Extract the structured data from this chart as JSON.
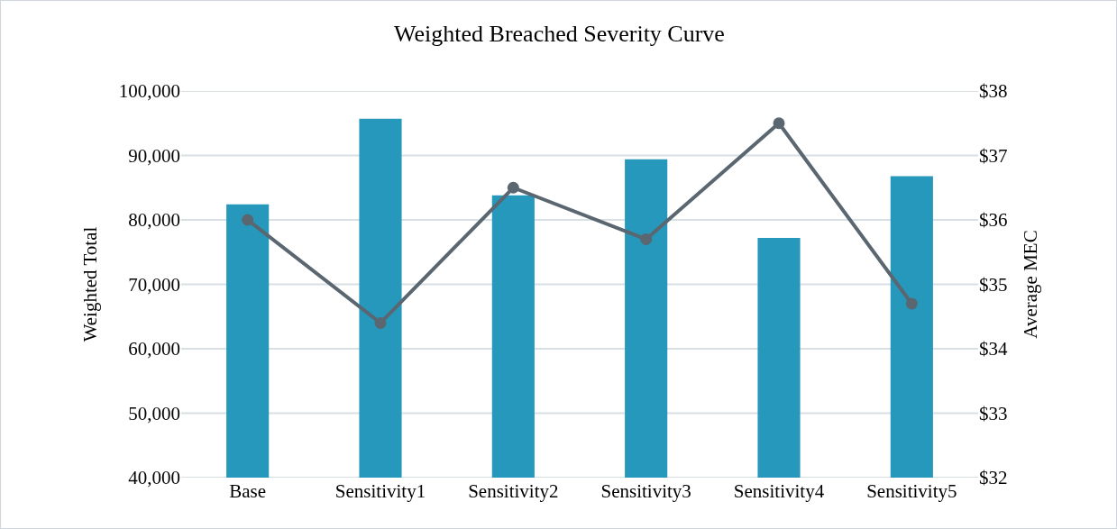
{
  "chart_data": {
    "type": "bar",
    "title": "Weighted Breached Severity Curve",
    "ylabel": "Weighted Total",
    "y2label": "Average MEC",
    "categories": [
      "Base",
      "Sensitivity1",
      "Sensitivity2",
      "Sensitivity3",
      "Sensitivity4",
      "Sensitivity5"
    ],
    "series": [
      {
        "color": "#2698bc",
        "values": [
          82400,
          95700,
          83800,
          89400,
          77200,
          86800
        ]
      },
      {
        "type": "line",
        "axis": "y2",
        "color": "#5a6670",
        "marker": "circle",
        "values": [
          36.0,
          34.4,
          36.5,
          35.7,
          37.5,
          34.7
        ]
      }
    ],
    "ylim": [
      40000,
      100000
    ],
    "yticks": [
      {
        "value": 40000,
        "label": "40,000"
      },
      {
        "value": 50000,
        "label": "50,000"
      },
      {
        "value": 60000,
        "label": "60,000"
      },
      {
        "value": 70000,
        "label": "70,000"
      },
      {
        "value": 80000,
        "label": "80,000"
      },
      {
        "value": 90000,
        "label": "90,000"
      },
      {
        "value": 100000,
        "label": "100,000"
      }
    ],
    "y2lim": [
      32,
      38
    ],
    "y2ticks": [
      {
        "value": 32,
        "label": "$32"
      },
      {
        "value": 33,
        "label": "$33"
      },
      {
        "value": 34,
        "label": "$34"
      },
      {
        "value": 35,
        "label": "$35"
      },
      {
        "value": 36,
        "label": "$36"
      },
      {
        "value": 37,
        "label": "$37"
      },
      {
        "value": 38,
        "label": "$38"
      }
    ],
    "grid": "y",
    "legend": false
  }
}
